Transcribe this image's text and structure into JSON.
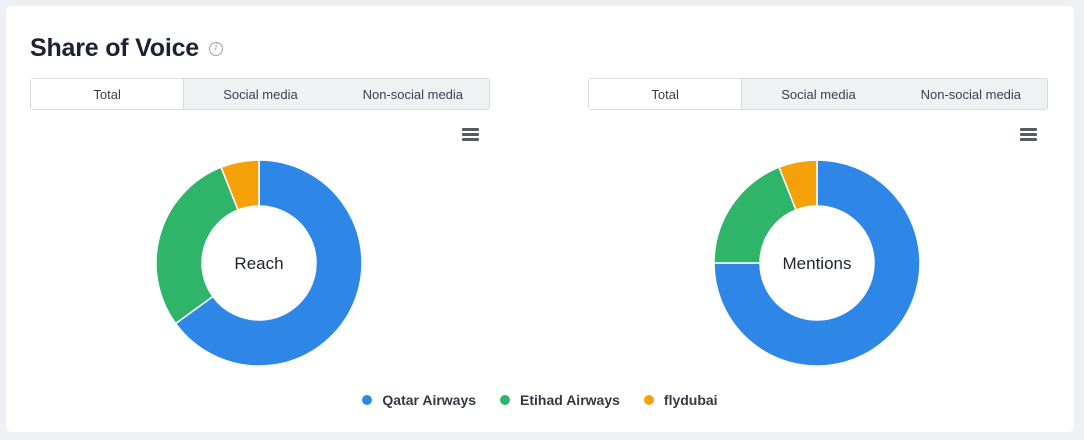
{
  "header": {
    "title": "Share of Voice",
    "info_icon": "info-icon"
  },
  "panels": [
    {
      "tabs": [
        "Total",
        "Social media",
        "Non-social media"
      ],
      "active_tab": "Total",
      "menu_icon": "hamburger-icon"
    },
    {
      "tabs": [
        "Total",
        "Social media",
        "Non-social media"
      ],
      "active_tab": "Total",
      "menu_icon": "hamburger-icon"
    }
  ],
  "chart_data": [
    {
      "type": "pie",
      "center_label": "Reach",
      "categories": [
        "Qatar Airways",
        "Etihad Airways",
        "flydubai"
      ],
      "values": [
        65,
        29,
        6
      ],
      "colors": [
        "#2e86e6",
        "#2fb56a",
        "#f5a20a"
      ]
    },
    {
      "type": "pie",
      "center_label": "Mentions",
      "categories": [
        "Qatar Airways",
        "Etihad Airways",
        "flydubai"
      ],
      "values": [
        75,
        19,
        6
      ],
      "colors": [
        "#2e86e6",
        "#2fb56a",
        "#f5a20a"
      ]
    }
  ],
  "legend": [
    {
      "label": "Qatar Airways",
      "color": "#2e86e6"
    },
    {
      "label": "Etihad Airways",
      "color": "#2fb56a"
    },
    {
      "label": "flydubai",
      "color": "#f5a20a"
    }
  ]
}
